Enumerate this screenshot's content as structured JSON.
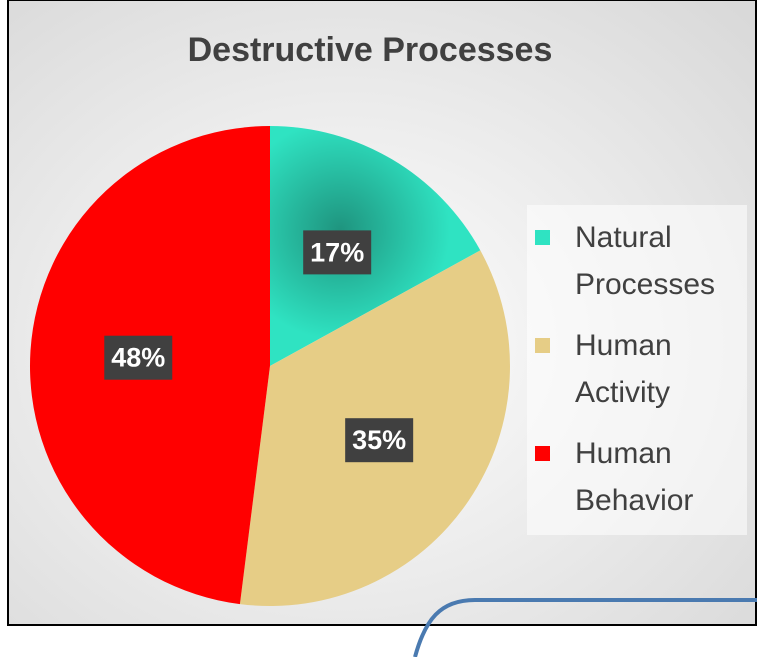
{
  "chart_data": {
    "type": "pie",
    "title": "Destructive Processes",
    "categories": [
      "Natural Processes",
      "Human Activity",
      "Human Behavior"
    ],
    "values": [
      17,
      35,
      48
    ],
    "value_labels": [
      "17%",
      "35%",
      "48%"
    ],
    "colors": [
      "#2fe3c2",
      "#e6cd86",
      "#ff0000"
    ],
    "legend": "right"
  }
}
